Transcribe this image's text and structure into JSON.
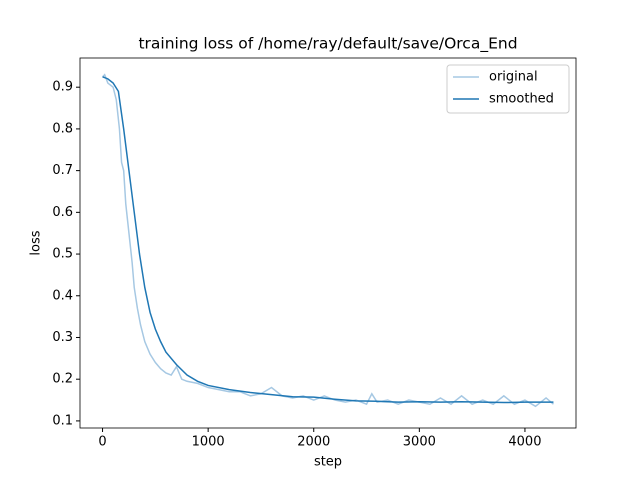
{
  "chart_data": {
    "type": "line",
    "title": "training loss of /home/ray/default/save/Orca_End",
    "xlabel": "step",
    "ylabel": "loss",
    "legend": "upper right",
    "series": [
      {
        "name": "original",
        "color": "#a6c8e3",
        "x": [
          0,
          20,
          50,
          100,
          130,
          160,
          180,
          200,
          220,
          250,
          280,
          300,
          330,
          360,
          400,
          450,
          500,
          550,
          600,
          650,
          700,
          750,
          800,
          900,
          1000,
          1100,
          1200,
          1300,
          1400,
          1500,
          1600,
          1700,
          1800,
          1900,
          2000,
          2100,
          2200,
          2300,
          2400,
          2500,
          2550,
          2600,
          2700,
          2800,
          2900,
          3000,
          3100,
          3200,
          3300,
          3400,
          3500,
          3600,
          3700,
          3800,
          3900,
          4000,
          4100,
          4200,
          4270
        ],
        "values": [
          0.925,
          0.93,
          0.91,
          0.9,
          0.87,
          0.8,
          0.72,
          0.7,
          0.62,
          0.55,
          0.48,
          0.42,
          0.37,
          0.33,
          0.29,
          0.26,
          0.24,
          0.225,
          0.215,
          0.21,
          0.23,
          0.2,
          0.195,
          0.19,
          0.18,
          0.175,
          0.17,
          0.17,
          0.16,
          0.165,
          0.18,
          0.16,
          0.155,
          0.16,
          0.15,
          0.16,
          0.15,
          0.145,
          0.15,
          0.14,
          0.165,
          0.145,
          0.15,
          0.14,
          0.15,
          0.145,
          0.14,
          0.155,
          0.14,
          0.16,
          0.14,
          0.15,
          0.14,
          0.16,
          0.14,
          0.15,
          0.135,
          0.155,
          0.14
        ]
      },
      {
        "name": "smoothed",
        "color": "#1f77b4",
        "x": [
          0,
          50,
          100,
          150,
          200,
          250,
          300,
          350,
          400,
          450,
          500,
          550,
          600,
          700,
          800,
          900,
          1000,
          1200,
          1400,
          1600,
          1800,
          2000,
          2200,
          2400,
          2600,
          2800,
          3000,
          3200,
          3400,
          3600,
          3800,
          4000,
          4270
        ],
        "values": [
          0.925,
          0.92,
          0.91,
          0.89,
          0.8,
          0.7,
          0.6,
          0.5,
          0.42,
          0.36,
          0.32,
          0.29,
          0.265,
          0.235,
          0.21,
          0.195,
          0.185,
          0.175,
          0.168,
          0.163,
          0.158,
          0.157,
          0.152,
          0.148,
          0.147,
          0.145,
          0.146,
          0.145,
          0.146,
          0.145,
          0.144,
          0.145,
          0.145
        ]
      }
    ],
    "xlim": [
      -213.5,
      4483.5
    ],
    "xticks": [
      0,
      1000,
      2000,
      3000,
      4000
    ],
    "ylim": [
      0.083,
      0.97
    ],
    "yticks": [
      0.1,
      0.2,
      0.3,
      0.4,
      0.5,
      0.6,
      0.7,
      0.8,
      0.9
    ]
  }
}
